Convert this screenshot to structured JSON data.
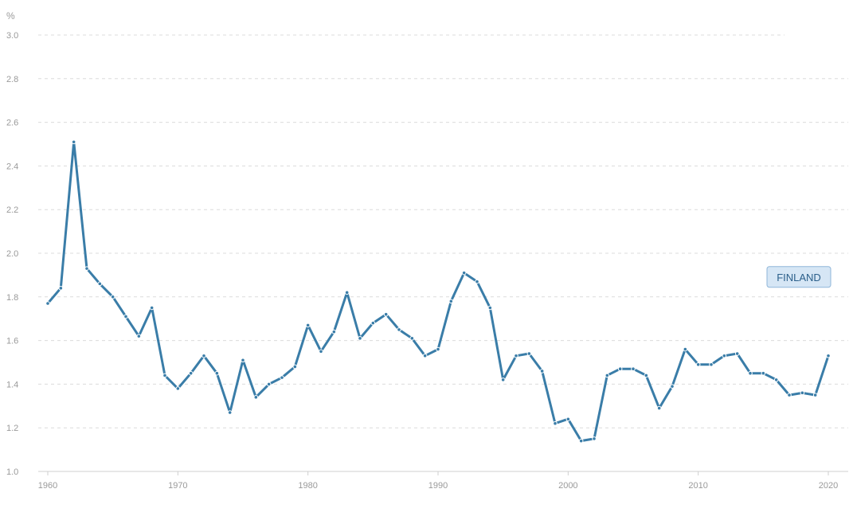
{
  "chart_data": {
    "type": "line",
    "title": "",
    "xlabel": "",
    "ylabel": "%",
    "ylim": [
      1.0,
      3.0
    ],
    "xlim": [
      1960,
      2020
    ],
    "yticks": [
      1.0,
      1.2,
      1.4,
      1.6,
      1.8,
      2.0,
      2.2,
      2.4,
      2.6,
      2.8,
      3.0
    ],
    "ytick_labels": [
      "1.0",
      "1.2",
      "1.4",
      "1.6",
      "1.8",
      "2.0",
      "2.2",
      "2.4",
      "2.6",
      "2.8",
      "3.0"
    ],
    "xticks": [
      1960,
      1970,
      1980,
      1990,
      2000,
      2010,
      2020
    ],
    "xtick_labels": [
      "1960",
      "1970",
      "1980",
      "1990",
      "2000",
      "2010",
      "2020"
    ],
    "grid": true,
    "x": [
      1960,
      1961,
      1962,
      1963,
      1964,
      1965,
      1966,
      1967,
      1968,
      1969,
      1970,
      1971,
      1972,
      1973,
      1974,
      1975,
      1976,
      1977,
      1978,
      1979,
      1980,
      1981,
      1982,
      1983,
      1984,
      1985,
      1986,
      1987,
      1988,
      1989,
      1990,
      1991,
      1992,
      1993,
      1994,
      1995,
      1996,
      1997,
      1998,
      1999,
      2000,
      2001,
      2002,
      2003,
      2004,
      2005,
      2006,
      2007,
      2008,
      2009,
      2010,
      2011,
      2012,
      2013,
      2014,
      2015,
      2016,
      2017,
      2018,
      2019,
      2020
    ],
    "series": [
      {
        "name": "FINLAND",
        "color": "#3a7da8",
        "values": [
          1.77,
          1.84,
          2.51,
          1.93,
          1.86,
          1.8,
          1.71,
          1.62,
          1.75,
          1.44,
          1.38,
          1.45,
          1.53,
          1.45,
          1.27,
          1.51,
          1.34,
          1.4,
          1.43,
          1.48,
          1.67,
          1.55,
          1.64,
          1.82,
          1.61,
          1.68,
          1.72,
          1.65,
          1.61,
          1.53,
          1.56,
          1.78,
          1.91,
          1.87,
          1.75,
          1.42,
          1.53,
          1.54,
          1.46,
          1.22,
          1.24,
          1.14,
          1.15,
          1.44,
          1.47,
          1.47,
          1.44,
          1.29,
          1.39,
          1.56,
          1.49,
          1.49,
          1.53,
          1.54,
          1.45,
          1.45,
          1.42,
          1.35,
          1.36,
          1.35,
          1.53
        ]
      }
    ]
  }
}
